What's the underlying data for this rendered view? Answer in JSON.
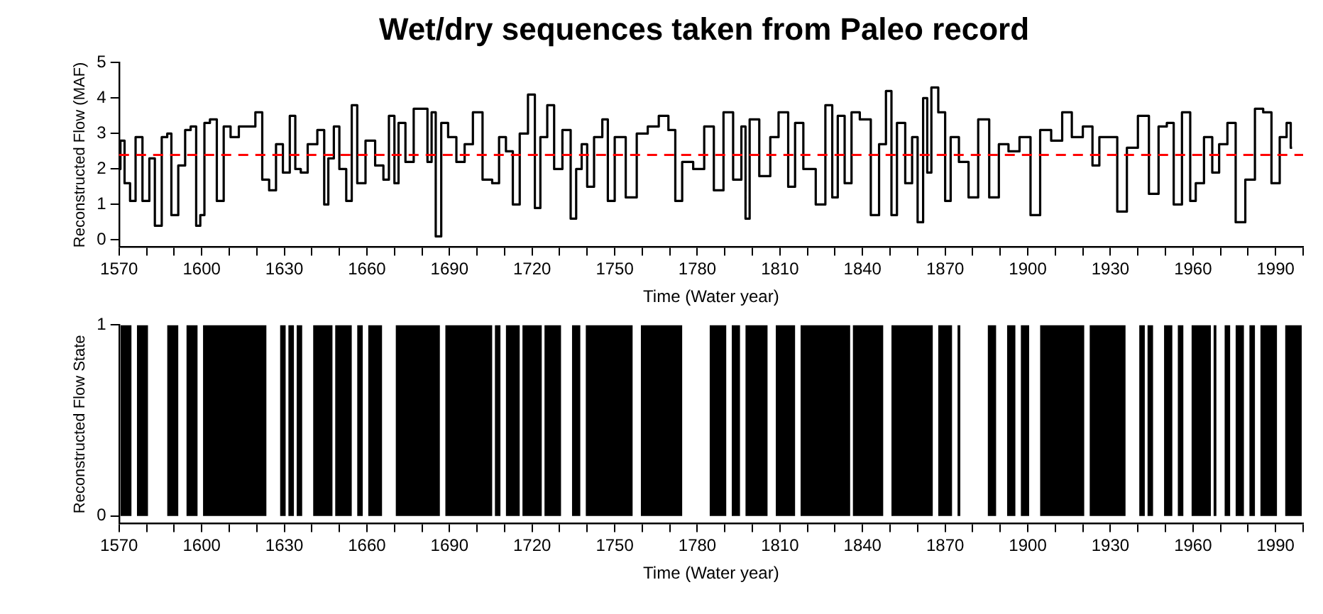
{
  "chart_data": [
    {
      "type": "step",
      "title": "Wet/dry sequences taken from Paleo record",
      "xlabel": "Time (Water year)",
      "ylabel": "Reconstructed Flow (MAF)",
      "xlim": [
        1570,
        2000
      ],
      "ylim": [
        -0.2,
        5
      ],
      "yticks": [
        0,
        1,
        2,
        3,
        4,
        5
      ],
      "xticks": [
        1570,
        {
          "value": 1580,
          "label": null
        },
        {
          "value": 1590,
          "label": null
        },
        1600,
        {
          "value": 1610,
          "label": null
        },
        {
          "value": 1620,
          "label": null
        },
        1630,
        {
          "value": 1640,
          "label": null
        },
        {
          "value": 1650,
          "label": null
        },
        1660,
        {
          "value": 1670,
          "label": null
        },
        {
          "value": 1680,
          "label": null
        },
        1690,
        {
          "value": 1700,
          "label": null
        },
        {
          "value": 1710,
          "label": null
        },
        1720,
        {
          "value": 1730,
          "label": null
        },
        {
          "value": 1740,
          "label": null
        },
        1750,
        {
          "value": 1760,
          "label": null
        },
        {
          "value": 1770,
          "label": null
        },
        1780,
        {
          "value": 1790,
          "label": null
        },
        {
          "value": 1800,
          "label": null
        },
        1810,
        {
          "value": 1820,
          "label": null
        },
        {
          "value": 1830,
          "label": null
        },
        1840,
        {
          "value": 1850,
          "label": null
        },
        {
          "value": 1860,
          "label": null
        },
        1870,
        {
          "value": 1880,
          "label": null
        },
        {
          "value": 1890,
          "label": null
        },
        1900,
        {
          "value": 1910,
          "label": null
        },
        {
          "value": 1920,
          "label": null
        },
        1930,
        {
          "value": 1940,
          "label": null
        },
        {
          "value": 1950,
          "label": null
        },
        1960,
        {
          "value": 1970,
          "label": null
        },
        {
          "value": 1980,
          "label": null
        },
        1990,
        {
          "value": 2000,
          "label": null
        }
      ],
      "series": [
        {
          "color": "#000000",
          "x": [
            1570,
            1571,
            1573,
            1575,
            1577,
            1580,
            1582,
            1584,
            1587,
            1588,
            1590,
            1593,
            1595,
            1597,
            1599,
            1600,
            1602,
            1604,
            1607,
            1609,
            1612,
            1615,
            1618,
            1621,
            1623,
            1626,
            1628,
            1631,
            1633,
            1635,
            1637,
            1640,
            1644,
            1645,
            1647,
            1649,
            1651,
            1654,
            1655,
            1658,
            1661,
            1665,
            1667,
            1669,
            1671,
            1672,
            1676,
            1678,
            1681,
            1683,
            1684,
            1686,
            1688,
            1691,
            1694,
            1697,
            1700,
            1704,
            1707,
            1709,
            1712,
            1714,
            1717,
            1720,
            1722,
            1724,
            1727,
            1729,
            1733,
            1735,
            1737,
            1739,
            1741,
            1744,
            1747,
            1748,
            1752,
            1756,
            1760,
            1764,
            1768,
            1771,
            1773,
            1776,
            1781,
            1784,
            1788,
            1791,
            1795,
            1797,
            1798,
            1800,
            1805,
            1808,
            1811,
            1815,
            1816,
            1821,
            1825,
            1828,
            1830,
            1832,
            1835,
            1837,
            1841,
            1845,
            1847,
            1850,
            1851,
            1854,
            1857,
            1859,
            1861,
            1863,
            1864,
            1866,
            1869,
            1871,
            1873,
            1877,
            1880,
            1884,
            1888,
            1891,
            1895,
            1899,
            1903,
            1906,
            1911,
            1914,
            1918,
            1922,
            1925,
            1927,
            1931,
            1934,
            1938,
            1942,
            1946,
            1949,
            1952,
            1954,
            1958,
            1960,
            1962,
            1966,
            1968,
            1971,
            1974,
            1977,
            1981,
            1984,
            1987,
            1990,
            1993,
            1995,
            1996
          ],
          "values": [
            2.0,
            2.8,
            1.6,
            1.1,
            2.9,
            1.1,
            2.3,
            0.4,
            2.9,
            3.0,
            0.7,
            2.1,
            3.1,
            3.2,
            0.4,
            0.7,
            3.3,
            3.4,
            1.1,
            3.2,
            2.9,
            3.2,
            3.2,
            3.6,
            1.7,
            1.4,
            2.7,
            1.9,
            3.5,
            2.0,
            1.9,
            2.7,
            3.1,
            1.0,
            2.3,
            3.2,
            2.0,
            1.1,
            3.8,
            1.6,
            2.8,
            2.1,
            1.7,
            3.5,
            1.6,
            3.3,
            2.2,
            3.7,
            3.7,
            2.2,
            3.6,
            0.1,
            3.3,
            2.9,
            2.2,
            2.7,
            3.6,
            1.7,
            1.6,
            2.9,
            2.5,
            1.0,
            3.0,
            4.1,
            0.9,
            2.9,
            3.8,
            2.0,
            3.1,
            0.6,
            2.0,
            2.7,
            1.5,
            2.9,
            3.4,
            1.1,
            2.9,
            1.2,
            3.0,
            3.2,
            3.5,
            3.1,
            1.1,
            2.2,
            2.0,
            3.2,
            1.4,
            3.6,
            1.7,
            3.2,
            0.6,
            3.4,
            1.8,
            2.9,
            3.6,
            1.5,
            3.3,
            2.0,
            1.0,
            3.8,
            1.2,
            3.5,
            1.6,
            3.6,
            3.4,
            0.7,
            2.7,
            4.2,
            0.7,
            3.3,
            1.6,
            2.9,
            0.5,
            4.0,
            1.9,
            4.3,
            3.6,
            1.1,
            2.9,
            2.2,
            1.2,
            3.4,
            1.2,
            2.7,
            2.5,
            2.9,
            0.7,
            3.1,
            2.8,
            3.6,
            2.9,
            3.2,
            2.1,
            2.9,
            2.9,
            0.8,
            2.6,
            3.5,
            1.3,
            3.2,
            3.3,
            1.0,
            3.6,
            1.1,
            1.6,
            2.9,
            1.9,
            2.7,
            3.3,
            0.5,
            1.7,
            3.7,
            3.6,
            1.6,
            2.9,
            3.3,
            2.6
          ]
        }
      ],
      "ref_lines": [
        {
          "axis": "y",
          "value": 2.4,
          "color": "#ff0000",
          "line_style": "dashed"
        }
      ],
      "marker": "none",
      "grid": false,
      "legend": false
    },
    {
      "type": "area",
      "xlabel": "Time (Water year)",
      "ylabel": "Reconstructed Flow State",
      "xlim": [
        1570,
        2000
      ],
      "ylim": [
        -0.04,
        1
      ],
      "yticks": [
        0,
        1
      ],
      "xticks": [
        1570,
        {
          "value": 1580,
          "label": null
        },
        {
          "value": 1590,
          "label": null
        },
        1600,
        {
          "value": 1610,
          "label": null
        },
        {
          "value": 1620,
          "label": null
        },
        1630,
        {
          "value": 1640,
          "label": null
        },
        {
          "value": 1650,
          "label": null
        },
        1660,
        {
          "value": 1670,
          "label": null
        },
        {
          "value": 1680,
          "label": null
        },
        1690,
        {
          "value": 1700,
          "label": null
        },
        {
          "value": 1710,
          "label": null
        },
        1720,
        {
          "value": 1730,
          "label": null
        },
        {
          "value": 1740,
          "label": null
        },
        1750,
        {
          "value": 1760,
          "label": null
        },
        {
          "value": 1770,
          "label": null
        },
        1780,
        {
          "value": 1790,
          "label": null
        },
        {
          "value": 1800,
          "label": null
        },
        1810,
        {
          "value": 1820,
          "label": null
        },
        {
          "value": 1830,
          "label": null
        },
        1840,
        {
          "value": 1850,
          "label": null
        },
        {
          "value": 1860,
          "label": null
        },
        1870,
        {
          "value": 1880,
          "label": null
        },
        {
          "value": 1890,
          "label": null
        },
        1900,
        {
          "value": 1910,
          "label": null
        },
        {
          "value": 1920,
          "label": null
        },
        1930,
        {
          "value": 1940,
          "label": null
        },
        {
          "value": 1950,
          "label": null
        },
        1960,
        {
          "value": 1970,
          "label": null
        },
        {
          "value": 1980,
          "label": null
        },
        1990,
        {
          "value": 2000,
          "label": null
        }
      ],
      "series": [
        {
          "color": "#000000",
          "x": [
            1570.5,
            1570.5,
            1574.5,
            1574.5,
            1576.5,
            1576.5,
            1580.5,
            1580.5,
            1587.5,
            1587.5,
            1591.5,
            1591.5,
            1594.5,
            1594.5,
            1598.5,
            1598.5,
            1600.5,
            1600.5,
            1623.5,
            1623.5,
            1628.5,
            1628.5,
            1630.5,
            1630.5,
            1631.5,
            1631.5,
            1633.5,
            1633.5,
            1634.5,
            1634.5,
            1636.5,
            1636.5,
            1640.5,
            1640.5,
            1647.5,
            1647.5,
            1648.5,
            1648.5,
            1654.5,
            1654.5,
            1656.5,
            1656.5,
            1658.5,
            1658.5,
            1660.5,
            1660.5,
            1665.5,
            1665.5,
            1670.5,
            1670.5,
            1686.5,
            1686.5,
            1688.5,
            1688.5,
            1705.5,
            1705.5,
            1706.5,
            1706.5,
            1708.5,
            1708.5,
            1710.5,
            1710.5,
            1715.5,
            1715.5,
            1716.5,
            1716.5,
            1723.5,
            1723.5,
            1724.5,
            1724.5,
            1730.5,
            1730.5,
            1734.5,
            1734.5,
            1737.5,
            1737.5,
            1739.5,
            1739.5,
            1756.5,
            1756.5,
            1759.5,
            1759.5,
            1774.5,
            1774.5,
            1784.5,
            1784.5,
            1790.5,
            1790.5,
            1792.5,
            1792.5,
            1795.5,
            1795.5,
            1797.5,
            1797.5,
            1805.5,
            1805.5,
            1808.5,
            1808.5,
            1815.5,
            1815.5,
            1817.5,
            1817.5,
            1835.5,
            1835.5,
            1836.5,
            1836.5,
            1847.5,
            1847.5,
            1850.5,
            1850.5,
            1865.5,
            1865.5,
            1867.5,
            1867.5,
            1872.5,
            1872.5,
            1874.5,
            1874.5,
            1875.5,
            1875.5,
            1885.5,
            1885.5,
            1888.5,
            1888.5,
            1892.5,
            1892.5,
            1895.5,
            1895.5,
            1897.5,
            1897.5,
            1900.5,
            1900.5,
            1904.5,
            1904.5,
            1920.5,
            1920.5,
            1922.5,
            1922.5,
            1935.5,
            1935.5,
            1940.5,
            1940.5,
            1942.5,
            1942.5,
            1943.5,
            1943.5,
            1945.5,
            1945.5,
            1949.5,
            1949.5,
            1952.5,
            1952.5,
            1954.5,
            1954.5,
            1956.5,
            1956.5,
            1959.5,
            1959.5,
            1966.5,
            1966.5,
            1967.5,
            1967.5,
            1968.5,
            1968.5,
            1971.5,
            1971.5,
            1973.5,
            1973.5,
            1975.5,
            1975.5,
            1978.5,
            1978.5,
            1980.5,
            1980.5,
            1982.5,
            1982.5,
            1984.5,
            1984.5,
            1990.5,
            1990.5,
            1993.5,
            1993.5,
            1999.5,
            1999.5
          ],
          "values": [
            0,
            1,
            1,
            0,
            0,
            1,
            1,
            0,
            0,
            1,
            1,
            0,
            0,
            1,
            1,
            0,
            0,
            1,
            1,
            0,
            0,
            1,
            1,
            0,
            0,
            1,
            1,
            0,
            0,
            1,
            1,
            0,
            0,
            1,
            1,
            0,
            0,
            1,
            1,
            0,
            0,
            1,
            1,
            0,
            0,
            1,
            1,
            0,
            0,
            1,
            1,
            0,
            0,
            1,
            1,
            0,
            0,
            1,
            1,
            0,
            0,
            1,
            1,
            0,
            0,
            1,
            1,
            0,
            0,
            1,
            1,
            0,
            0,
            1,
            1,
            0,
            0,
            1,
            1,
            0,
            0,
            1,
            1,
            0,
            0,
            1,
            1,
            0,
            0,
            1,
            1,
            0,
            0,
            1,
            1,
            0,
            0,
            1,
            1,
            0,
            0,
            1,
            1,
            0,
            0,
            1,
            1,
            0,
            0,
            1,
            1,
            0,
            0,
            1,
            1,
            0,
            0,
            1,
            1,
            0,
            0,
            1,
            1,
            0,
            0,
            1,
            1,
            0,
            0,
            1,
            1,
            0,
            0,
            1,
            1,
            0,
            0,
            1,
            1,
            0,
            0,
            1,
            1,
            0,
            0,
            1,
            1,
            0,
            0,
            1,
            1,
            0,
            0,
            1,
            1,
            0,
            0,
            1,
            1,
            0,
            0,
            1,
            1,
            0,
            0,
            1,
            1,
            0,
            0,
            1,
            1,
            0,
            0,
            1,
            1,
            0,
            0,
            1,
            1,
            0,
            0,
            1,
            1,
            0
          ]
        }
      ],
      "marker": "none",
      "grid": false,
      "legend": false
    }
  ]
}
